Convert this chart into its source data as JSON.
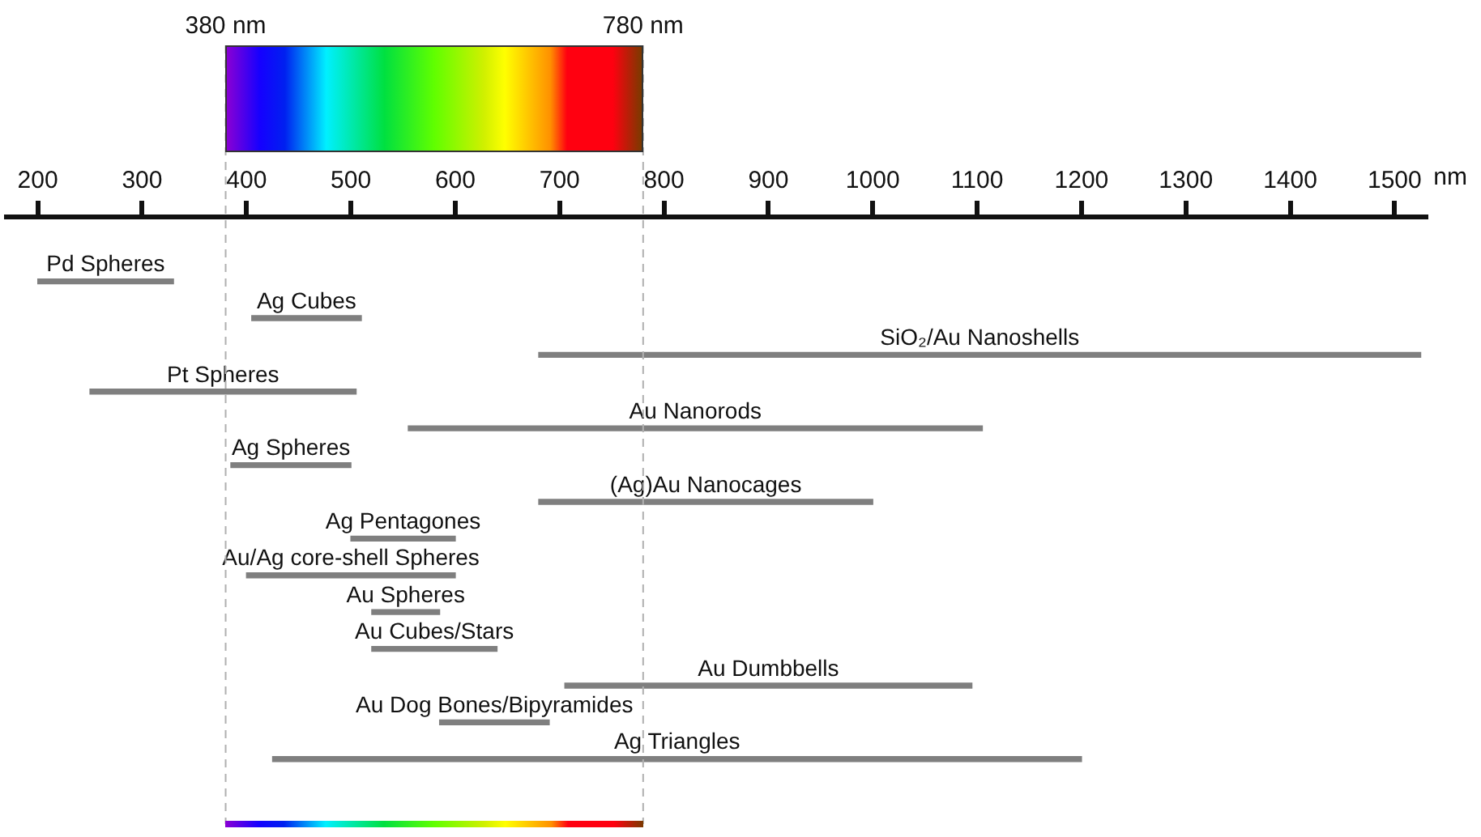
{
  "chart_data": {
    "type": "bar",
    "orientation": "horizontal",
    "tick_labels": "x",
    "grid": false,
    "xlabel": "nm",
    "categories": [
      "Pd Spheres",
      "Ag Cubes",
      "SiO₂/Au Nanoshells",
      "Pt Spheres",
      "Au Nanorods",
      "Ag Spheres",
      "(Ag)Au Nanocages",
      "Ag Pentagones",
      "Au/Ag core-shell Spheres",
      "Au Spheres",
      "Au Cubes/Stars",
      "Au Dumbbells",
      "Au Dog Bones/Bipyramides",
      "Ag Triangles"
    ],
    "base": [
      200,
      405,
      680,
      250,
      555,
      385,
      680,
      500,
      400,
      520,
      520,
      705,
      585,
      425
    ],
    "values": [
      130,
      105,
      845,
      255,
      550,
      115,
      320,
      100,
      200,
      65,
      120,
      390,
      105,
      775
    ],
    "color": "#7f7f7f",
    "xlim": [
      170,
      1530
    ],
    "xticks": [
      200,
      300,
      400,
      500,
      600,
      700,
      800,
      900,
      1000,
      1100,
      1200,
      1300,
      1400,
      1500
    ],
    "ref_lines": [
      {
        "axis": "x",
        "value": 380,
        "label": "380 nm",
        "line_style": "dashed",
        "color": "#b0b0b0"
      },
      {
        "axis": "x",
        "value": 780,
        "label": "780 nm",
        "line_style": "dashed",
        "color": "#b0b0b0"
      }
    ]
  }
}
